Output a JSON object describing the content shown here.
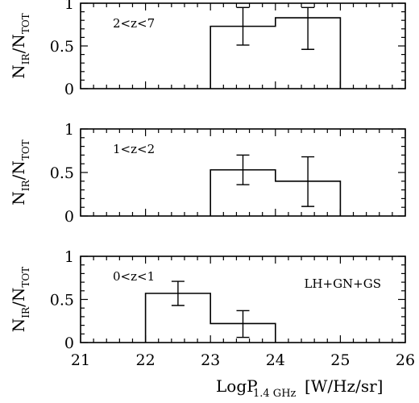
{
  "chart_data": {
    "type": "histogram",
    "xlabel": {
      "main": "LogP",
      "sub": "1.4 GHz",
      "units": "[W/Hz/sr]"
    },
    "ylabel": {
      "main": "N",
      "sub1": "IR",
      "slash": "/N",
      "sub2": "TOT"
    },
    "xlim": [
      21,
      26
    ],
    "x_ticks": [
      "21",
      "22",
      "23",
      "24",
      "25",
      "26"
    ],
    "ylim": [
      0,
      1
    ],
    "y_ticks": [
      "0",
      "0.5",
      "1"
    ],
    "panels": [
      {
        "label": "2<z<7",
        "note": "",
        "bins": [
          {
            "x0": 23,
            "x1": 24,
            "y": 0.73,
            "err_lo": 0.51,
            "err_hi": 0.95,
            "xc": 23.5
          },
          {
            "x0": 24,
            "x1": 25,
            "y": 0.83,
            "err_lo": 0.46,
            "err_hi": 0.95,
            "xc": 24.5
          }
        ]
      },
      {
        "label": "1<z<2",
        "note": "",
        "bins": [
          {
            "x0": 23,
            "x1": 24,
            "y": 0.53,
            "err_lo": 0.36,
            "err_hi": 0.7,
            "xc": 23.5
          },
          {
            "x0": 24,
            "x1": 25,
            "y": 0.4,
            "err_lo": 0.11,
            "err_hi": 0.68,
            "xc": 24.5
          }
        ]
      },
      {
        "label": "0<z<1",
        "note": "LH+GN+GS",
        "bins": [
          {
            "x0": 22,
            "x1": 23,
            "y": 0.57,
            "err_lo": 0.43,
            "err_hi": 0.71,
            "xc": 22.5
          },
          {
            "x0": 23,
            "x1": 24,
            "y": 0.22,
            "err_lo": 0.06,
            "err_hi": 0.37,
            "xc": 23.5
          }
        ]
      }
    ]
  }
}
